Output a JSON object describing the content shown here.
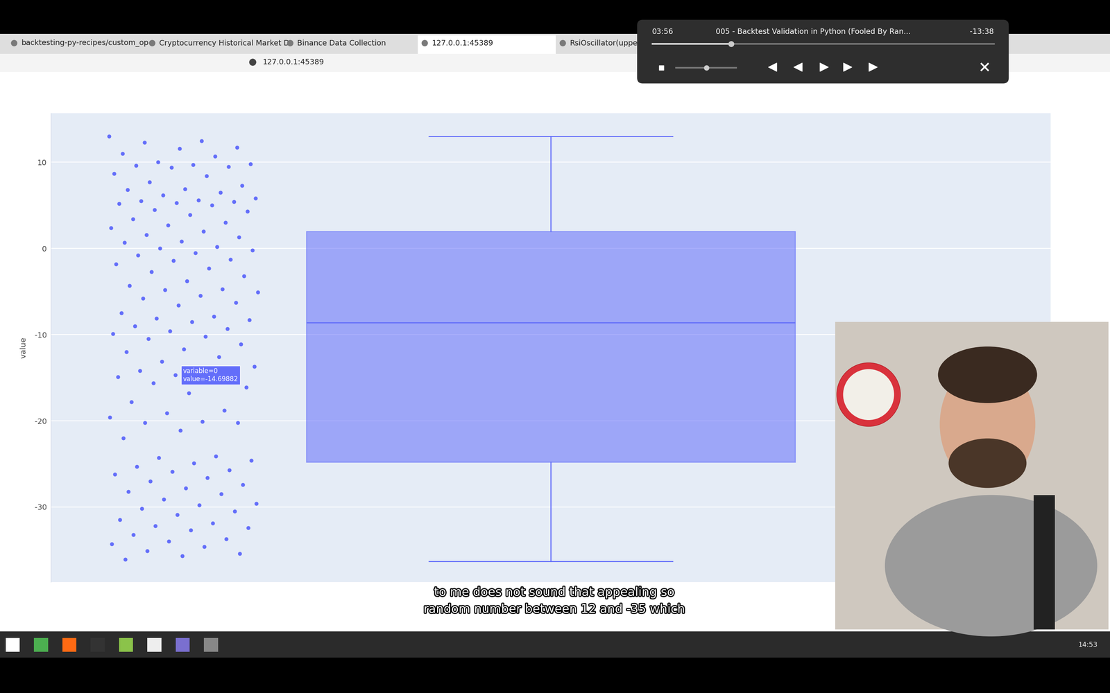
{
  "browser": {
    "tabs": [
      "backtesting-py-recipes/custom_op",
      "Cryptocurrency Historical Market D",
      "Binance Data Collection",
      "127.0.0.1:45389",
      "RsiOscillator(uppe"
    ],
    "address": "127.0.0.1:45389"
  },
  "video_player": {
    "elapsed": "03:56",
    "title": "005 - Backtest Validation in Python (Fooled By Ran...",
    "remaining": "-13:38"
  },
  "subtitles": [
    "to me does not sound that appealing so",
    "random number between 12 and -35 which"
  ],
  "taskbar": {
    "clock": "14:53"
  },
  "chart_data": {
    "type": "box",
    "y_label": "value",
    "ylim": [
      -38.7,
      15.7
    ],
    "yticks": [
      -30,
      -20,
      -10,
      0,
      10
    ],
    "grid": true,
    "color": "#636efa",
    "box": {
      "lower_whisker": -36.3,
      "q1": -24.8,
      "median": -8.6,
      "q3": 2.0,
      "upper_whisker": 13.0
    },
    "points": [
      13.0,
      12.5,
      12.3,
      11.7,
      11.6,
      11.0,
      10.7,
      10.0,
      9.8,
      9.7,
      9.6,
      9.5,
      9.4,
      8.7,
      8.4,
      7.7,
      7.3,
      6.9,
      6.8,
      6.5,
      6.2,
      5.8,
      5.6,
      5.5,
      5.4,
      5.3,
      5.2,
      5.0,
      4.5,
      4.3,
      3.9,
      3.4,
      3.0,
      2.7,
      2.4,
      2.0,
      1.6,
      1.3,
      0.8,
      0.7,
      0.2,
      0.0,
      -0.2,
      -0.5,
      -0.8,
      -1.3,
      -1.4,
      -1.8,
      -2.3,
      -2.7,
      -3.2,
      -3.8,
      -4.3,
      -4.7,
      -4.8,
      -5.1,
      -5.5,
      -5.8,
      -6.3,
      -6.6,
      -7.5,
      -7.9,
      -8.1,
      -8.3,
      -8.5,
      -9.0,
      -9.3,
      -9.6,
      -9.9,
      -10.2,
      -10.5,
      -11.1,
      -11.7,
      -12.0,
      -12.6,
      -13.1,
      -13.7,
      -13.9,
      -14.2,
      -14.4,
      -14.7,
      -14.9,
      -15.3,
      -15.6,
      -16.1,
      -16.8,
      -17.8,
      -18.8,
      -19.1,
      -19.6,
      -20.1,
      -20.2,
      -20.2,
      -21.1,
      -22.0,
      -24.1,
      -24.3,
      -24.6,
      -24.9,
      -25.3,
      -25.7,
      -25.9,
      -26.2,
      -26.6,
      -27.0,
      -27.4,
      -27.8,
      -28.2,
      -28.5,
      -29.1,
      -29.6,
      -29.8,
      -30.2,
      -30.5,
      -30.9,
      -31.5,
      -31.9,
      -32.2,
      -32.4,
      -32.7,
      -33.2,
      -33.7,
      -34.0,
      -34.3,
      -34.6,
      -35.1,
      -35.4,
      -35.7,
      -36.1
    ],
    "tooltip": {
      "lines": [
        "variable=0",
        "value=-14.69882"
      ],
      "value": -14.69882
    }
  }
}
